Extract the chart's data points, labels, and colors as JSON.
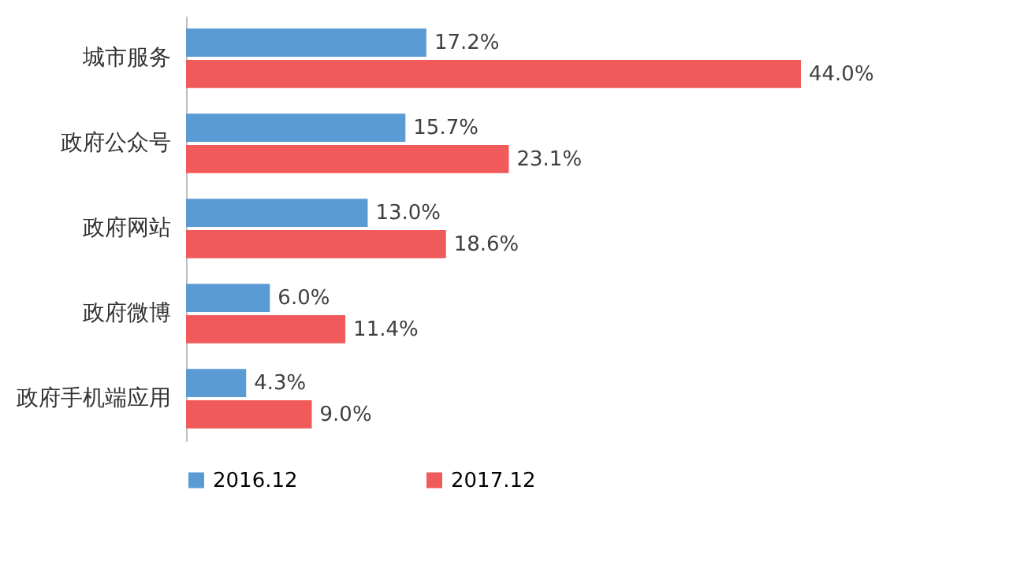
{
  "chart_data": {
    "type": "bar",
    "orientation": "horizontal",
    "categories": [
      "城市服务",
      "政府公众号",
      "政府网站",
      "政府微博",
      "政府手机端应用"
    ],
    "series": [
      {
        "name": "2016.12",
        "color": "#5b9bd5",
        "values": [
          17.2,
          15.7,
          13.0,
          6.0,
          4.3
        ],
        "value_labels": [
          "17.2%",
          "15.7%",
          "13.0%",
          "6.0%",
          "4.3%"
        ]
      },
      {
        "name": "2017.12",
        "color": "#f05a5a",
        "values": [
          44.0,
          23.1,
          18.6,
          11.4,
          9.0
        ],
        "value_labels": [
          "44.0%",
          "23.1%",
          "18.6%",
          "11.4%",
          "9.0%"
        ]
      }
    ],
    "legend": "bottom",
    "tick_labels": "y"
  }
}
